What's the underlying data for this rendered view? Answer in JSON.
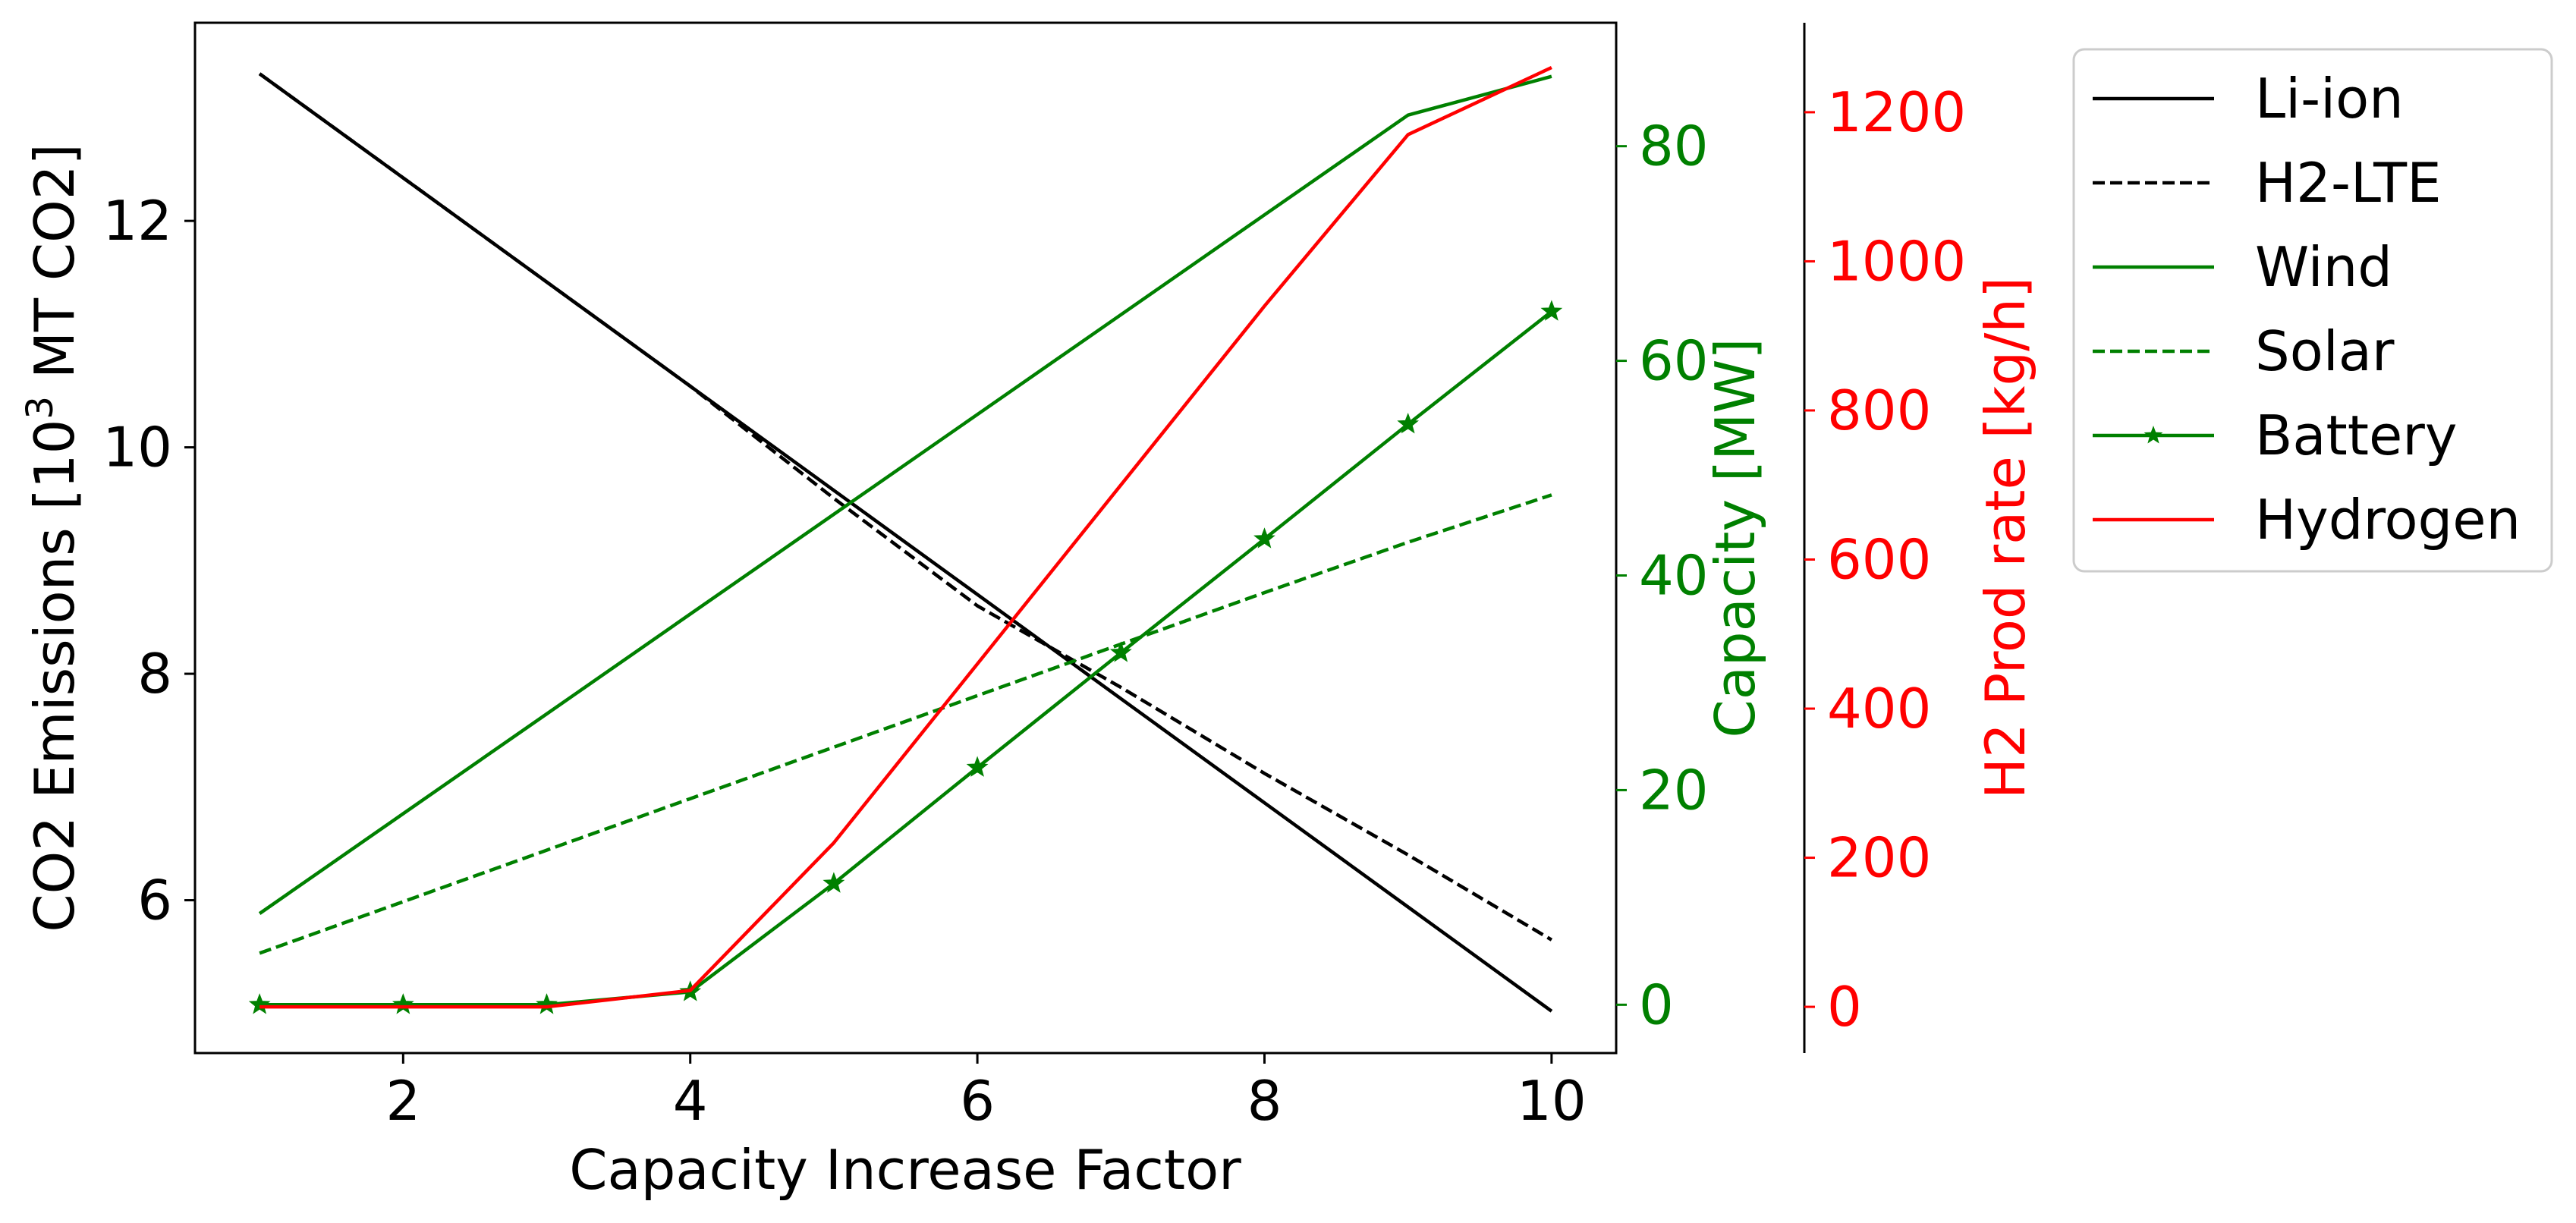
{
  "chart_data": {
    "type": "line",
    "title": "",
    "xlabel": "Capacity Increase Factor",
    "x": [
      1,
      2,
      3,
      4,
      5,
      6,
      7,
      8,
      9,
      10
    ],
    "xticks": [
      "2",
      "4",
      "6",
      "8",
      "10"
    ],
    "xlim": [
      0.55,
      10.45
    ],
    "axes": {
      "left": {
        "label_main": "CO2 Emissions [10",
        "label_sup": "3",
        "label_tail": " MT CO2]",
        "ylim": [
          4.65,
          13.75
        ],
        "ticks": [
          "6",
          "8",
          "10",
          "12"
        ],
        "color": "#000000"
      },
      "right1": {
        "label": "Capacity [MW]",
        "ylim": [
          -4.5,
          91.5
        ],
        "ticks": [
          "0",
          "20",
          "40",
          "60",
          "80"
        ],
        "color": "#008000"
      },
      "right2": {
        "label": "H2 Prod rate [kg/h]",
        "ylim": [
          -62,
          1320
        ],
        "ticks": [
          "0",
          "200",
          "400",
          "600",
          "800",
          "1000",
          "1200"
        ],
        "color": "#ff0000"
      }
    },
    "series": [
      {
        "name": "Li-ion",
        "axis": "left",
        "color": "#000000",
        "style": "solid",
        "marker": "none",
        "values": [
          13.3,
          12.38,
          11.46,
          10.54,
          9.62,
          8.7,
          7.78,
          6.86,
          5.94,
          5.02
        ]
      },
      {
        "name": "H2-LTE",
        "axis": "left",
        "color": "#000000",
        "style": "dashed",
        "marker": "none",
        "values": [
          13.3,
          12.38,
          11.46,
          10.54,
          9.55,
          8.6,
          7.88,
          7.12,
          6.4,
          5.65
        ]
      },
      {
        "name": "Wind",
        "axis": "right1",
        "color": "#008000",
        "style": "solid",
        "marker": "none",
        "values": [
          8.5,
          17.8,
          27.1,
          36.4,
          45.7,
          55.0,
          64.3,
          73.6,
          82.9,
          86.5
        ]
      },
      {
        "name": "Solar",
        "axis": "right1",
        "color": "#008000",
        "style": "dashed",
        "marker": "none",
        "values": [
          4.8,
          9.6,
          14.4,
          19.2,
          24.0,
          28.8,
          33.6,
          38.4,
          43.1,
          47.5
        ]
      },
      {
        "name": "Battery",
        "axis": "right1",
        "color": "#008000",
        "style": "solid",
        "marker": "star",
        "values": [
          0,
          0,
          0,
          1.2,
          11.3,
          22.1,
          32.8,
          43.4,
          54.1,
          64.6
        ]
      },
      {
        "name": "Hydrogen",
        "axis": "right2",
        "color": "#ff0000",
        "style": "solid",
        "marker": "none",
        "values": [
          0,
          0,
          0,
          22,
          220,
          460,
          700,
          940,
          1170,
          1260
        ]
      }
    ],
    "legend": "outside-right-top"
  }
}
